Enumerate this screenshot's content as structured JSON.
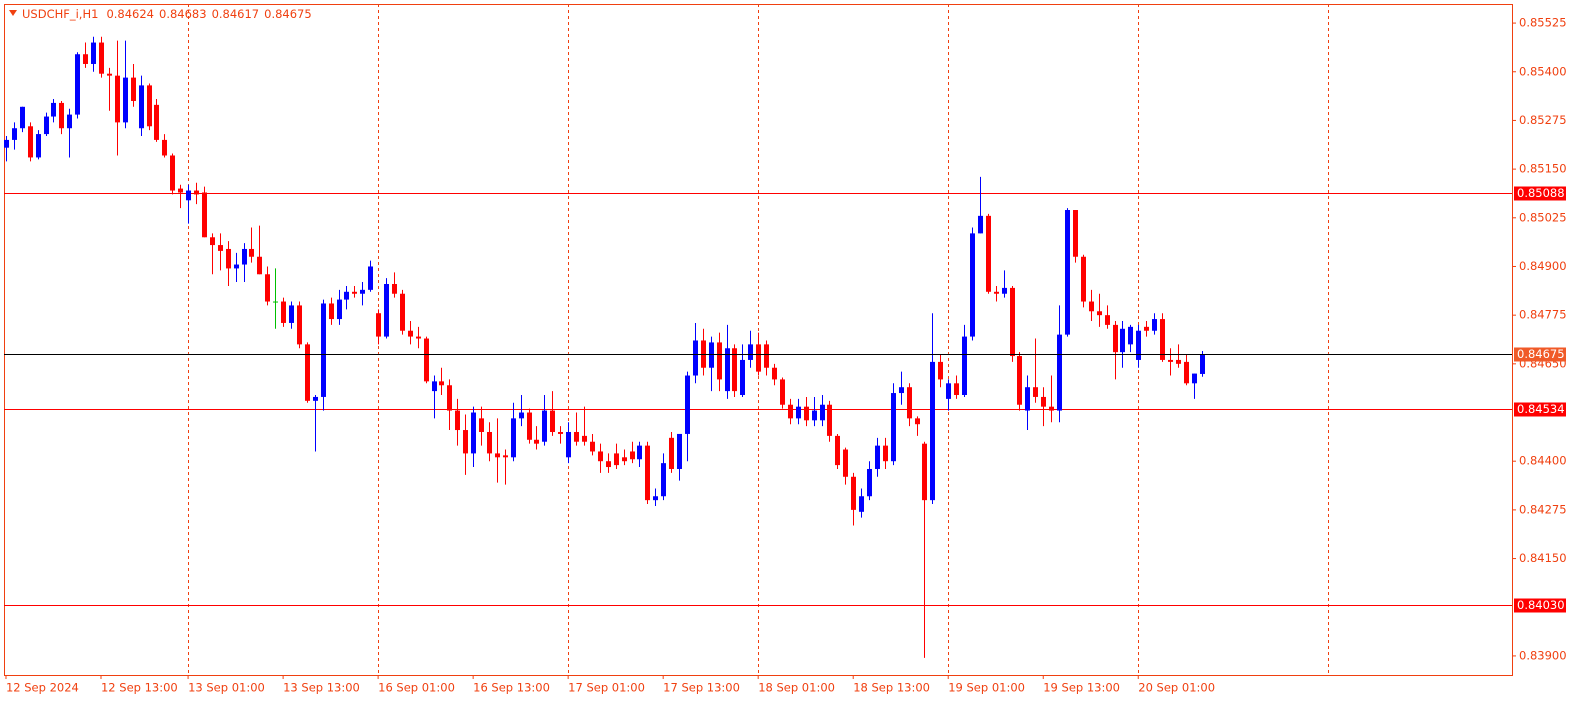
{
  "chart_data": {
    "type": "candlestick",
    "title": "USDCHF_i,H1",
    "bull_color": "#0000ff",
    "bear_color": "#ff0000",
    "doji_color": "#00c000",
    "axis_color": "#f04010",
    "ylim": [
      0.83851,
      0.85574
    ],
    "xlim": [
      -0.25,
      190.2
    ],
    "yticks": [
      0.85525,
      {
        "value": 0.854,
        "label": "0.85400"
      },
      0.85275,
      {
        "value": 0.8515,
        "label": "0.85150"
      },
      0.85025,
      {
        "value": 0.849,
        "label": "0.84900"
      },
      0.84775,
      {
        "value": 0.8465,
        "label": "0.84650"
      },
      {
        "value": 0.844,
        "label": "0.84400"
      },
      0.84275,
      {
        "value": 0.8415,
        "label": "0.84150"
      },
      {
        "value": 0.839,
        "label": "0.83900"
      }
    ],
    "xticks": [
      {
        "value": 0,
        "label": "12 Sep 2024"
      },
      {
        "value": 12,
        "label": "12 Sep 13:00"
      },
      {
        "value": 23,
        "label": "13 Sep 01:00"
      },
      {
        "value": 35,
        "label": "13 Sep 13:00"
      },
      {
        "value": 47,
        "label": "16 Sep 01:00"
      },
      {
        "value": 59,
        "label": "16 Sep 13:00"
      },
      {
        "value": 71,
        "label": "17 Sep 01:00"
      },
      {
        "value": 83,
        "label": "17 Sep 13:00"
      },
      {
        "value": 95,
        "label": "18 Sep 01:00"
      },
      {
        "value": 107,
        "label": "18 Sep 13:00"
      },
      {
        "value": 119,
        "label": "19 Sep 01:00"
      },
      {
        "value": 131,
        "label": "19 Sep 13:00"
      },
      {
        "value": 143,
        "label": "20 Sep 01:00"
      }
    ],
    "xgrid": [
      23,
      47,
      71,
      95,
      119,
      143,
      167
    ],
    "levels": [
      {
        "value": 0.85088
      },
      {
        "value": 0.84534
      },
      {
        "value": 0.8403,
        "label": "0.84030"
      }
    ],
    "candles": [
      [
        0.85205,
        0.85235,
        0.8517,
        0.85225
      ],
      [
        0.85225,
        0.8527,
        0.852,
        0.85255
      ],
      [
        0.85255,
        0.8531,
        0.85245,
        0.8531
      ],
      [
        0.8526,
        0.8527,
        0.8517,
        0.8518
      ],
      [
        0.8518,
        0.8525,
        0.85175,
        0.8524
      ],
      [
        0.8524,
        0.85295,
        0.85235,
        0.85285
      ],
      [
        0.85285,
        0.8533,
        0.8527,
        0.8532
      ],
      [
        0.8532,
        0.85325,
        0.8524,
        0.85255
      ],
      [
        0.85255,
        0.85305,
        0.8518,
        0.8529
      ],
      [
        0.8529,
        0.8545,
        0.8528,
        0.85445
      ],
      [
        0.85445,
        0.85475,
        0.8541,
        0.8542
      ],
      [
        0.8542,
        0.8549,
        0.854,
        0.85475
      ],
      [
        0.85475,
        0.8549,
        0.85385,
        0.85395
      ],
      [
        0.85395,
        0.8541,
        0.853,
        0.8539
      ],
      [
        0.8539,
        0.8548,
        0.85185,
        0.8527
      ],
      [
        0.8527,
        0.8548,
        0.85255,
        0.85385
      ],
      [
        0.85385,
        0.8542,
        0.8531,
        0.85325
      ],
      [
        0.85255,
        0.8539,
        0.85235,
        0.85365
      ],
      [
        0.85365,
        0.8537,
        0.8525,
        0.8526
      ],
      [
        0.85315,
        0.8533,
        0.8522,
        0.85225
      ],
      [
        0.85225,
        0.8524,
        0.8518,
        0.85185
      ],
      [
        0.85185,
        0.8519,
        0.85085,
        0.85095
      ],
      [
        0.851,
        0.8511,
        0.8505,
        0.8509
      ],
      [
        0.8507,
        0.8511,
        0.8501,
        0.85095
      ],
      [
        0.85095,
        0.85115,
        0.8506,
        0.85085
      ],
      [
        0.8509,
        0.85105,
        0.84975,
        0.84975
      ],
      [
        0.84975,
        0.84985,
        0.8488,
        0.84955
      ],
      [
        0.84955,
        0.84985,
        0.8489,
        0.8494
      ],
      [
        0.84945,
        0.84965,
        0.8485,
        0.84895
      ],
      [
        0.84895,
        0.84935,
        0.8486,
        0.84905
      ],
      [
        0.84905,
        0.8496,
        0.8486,
        0.84945
      ],
      [
        0.84945,
        0.85,
        0.8491,
        0.84925
      ],
      [
        0.84925,
        0.85005,
        0.8488,
        0.8488
      ],
      [
        0.8488,
        0.849,
        0.848,
        0.8481
      ],
      [
        0.8481,
        0.84895,
        0.8474,
        0.8481
      ],
      [
        0.8481,
        0.8482,
        0.84745,
        0.84755
      ],
      [
        0.84755,
        0.8481,
        0.8474,
        0.848
      ],
      [
        0.848,
        0.8481,
        0.8469,
        0.847
      ],
      [
        0.847,
        0.84705,
        0.8455,
        0.84555
      ],
      [
        0.84555,
        0.8457,
        0.84425,
        0.84565
      ],
      [
        0.84565,
        0.84815,
        0.8453,
        0.84805
      ],
      [
        0.84805,
        0.8482,
        0.8475,
        0.84765
      ],
      [
        0.84765,
        0.8484,
        0.8475,
        0.84815
      ],
      [
        0.84815,
        0.8485,
        0.8479,
        0.84835
      ],
      [
        0.84835,
        0.8485,
        0.8482,
        0.8483
      ],
      [
        0.8483,
        0.8486,
        0.848,
        0.8484
      ],
      [
        0.8484,
        0.84915,
        0.84835,
        0.849
      ],
      [
        0.8478,
        0.8479,
        0.847,
        0.8472
      ],
      [
        0.8472,
        0.8487,
        0.84715,
        0.84855
      ],
      [
        0.84855,
        0.84885,
        0.8482,
        0.8483
      ],
      [
        0.8483,
        0.8484,
        0.84725,
        0.84735
      ],
      [
        0.84735,
        0.8476,
        0.847,
        0.8472
      ],
      [
        0.8472,
        0.84745,
        0.8469,
        0.84715
      ],
      [
        0.84715,
        0.8472,
        0.846,
        0.84605
      ],
      [
        0.8458,
        0.8462,
        0.8451,
        0.84605
      ],
      [
        0.84605,
        0.8464,
        0.8457,
        0.84595
      ],
      [
        0.84595,
        0.8461,
        0.8448,
        0.8453
      ],
      [
        0.8453,
        0.8456,
        0.8444,
        0.8448
      ],
      [
        0.8448,
        0.8452,
        0.84365,
        0.8442
      ],
      [
        0.8442,
        0.8454,
        0.84385,
        0.84525
      ],
      [
        0.8451,
        0.8454,
        0.8444,
        0.84475
      ],
      [
        0.84475,
        0.845,
        0.844,
        0.8442
      ],
      [
        0.8442,
        0.8451,
        0.84345,
        0.8441
      ],
      [
        0.84415,
        0.8443,
        0.8434,
        0.8441
      ],
      [
        0.8441,
        0.8455,
        0.844,
        0.8451
      ],
      [
        0.8451,
        0.8457,
        0.8449,
        0.84525
      ],
      [
        0.84525,
        0.84535,
        0.84445,
        0.84455
      ],
      [
        0.84455,
        0.8449,
        0.8443,
        0.84445
      ],
      [
        0.8445,
        0.8457,
        0.8444,
        0.8453
      ],
      [
        0.8453,
        0.8458,
        0.84465,
        0.84475
      ],
      [
        0.84475,
        0.8449,
        0.84445,
        0.8447
      ],
      [
        0.8441,
        0.845,
        0.84395,
        0.84475
      ],
      [
        0.84475,
        0.84525,
        0.8444,
        0.8445
      ],
      [
        0.84465,
        0.8454,
        0.8444,
        0.8445
      ],
      [
        0.8445,
        0.8447,
        0.84415,
        0.84425
      ],
      [
        0.84425,
        0.84445,
        0.8437,
        0.844
      ],
      [
        0.844,
        0.8442,
        0.8437,
        0.84385
      ],
      [
        0.8442,
        0.84445,
        0.8438,
        0.8439
      ],
      [
        0.8441,
        0.8443,
        0.8439,
        0.844
      ],
      [
        0.84425,
        0.8445,
        0.84395,
        0.84405
      ],
      [
        0.84405,
        0.8445,
        0.84385,
        0.8444
      ],
      [
        0.8444,
        0.8445,
        0.8429,
        0.843
      ],
      [
        0.843,
        0.8433,
        0.84285,
        0.8431
      ],
      [
        0.8431,
        0.8442,
        0.843,
        0.84395
      ],
      [
        0.8446,
        0.84475,
        0.8437,
        0.8438
      ],
      [
        0.8438,
        0.8447,
        0.8435,
        0.8447
      ],
      [
        0.8447,
        0.8463,
        0.844,
        0.8462
      ],
      [
        0.8462,
        0.84755,
        0.846,
        0.8471
      ],
      [
        0.8471,
        0.8474,
        0.8462,
        0.8464
      ],
      [
        0.8464,
        0.8472,
        0.8458,
        0.84705
      ],
      [
        0.84705,
        0.8473,
        0.8458,
        0.8461
      ],
      [
        0.8458,
        0.8475,
        0.8456,
        0.8469
      ],
      [
        0.8469,
        0.847,
        0.84565,
        0.8458
      ],
      [
        0.8457,
        0.847,
        0.84565,
        0.8466
      ],
      [
        0.8466,
        0.84735,
        0.8464,
        0.847
      ],
      [
        0.847,
        0.8473,
        0.8462,
        0.8463
      ],
      [
        0.847,
        0.8471,
        0.8462,
        0.8464
      ],
      [
        0.8464,
        0.8465,
        0.84595,
        0.8461
      ],
      [
        0.8461,
        0.84615,
        0.84535,
        0.84545
      ],
      [
        0.84545,
        0.8456,
        0.84495,
        0.8451
      ],
      [
        0.8451,
        0.8456,
        0.84495,
        0.8454
      ],
      [
        0.8454,
        0.84565,
        0.8449,
        0.84505
      ],
      [
        0.84505,
        0.84565,
        0.8449,
        0.8453
      ],
      [
        0.84505,
        0.8457,
        0.8449,
        0.84545
      ],
      [
        0.84545,
        0.84555,
        0.8445,
        0.84465
      ],
      [
        0.84465,
        0.8447,
        0.8438,
        0.8439
      ],
      [
        0.8443,
        0.84435,
        0.8434,
        0.8436
      ],
      [
        0.8436,
        0.8437,
        0.84235,
        0.84275
      ],
      [
        0.8427,
        0.8433,
        0.84255,
        0.8431
      ],
      [
        0.8431,
        0.844,
        0.843,
        0.8438
      ],
      [
        0.8438,
        0.8446,
        0.8436,
        0.8444
      ],
      [
        0.8444,
        0.8446,
        0.8438,
        0.844
      ],
      [
        0.844,
        0.846,
        0.8439,
        0.84575
      ],
      [
        0.84575,
        0.8463,
        0.84545,
        0.8459
      ],
      [
        0.8459,
        0.846,
        0.8449,
        0.8451
      ],
      [
        0.8451,
        0.84515,
        0.84465,
        0.84495
      ],
      [
        0.84445,
        0.8445,
        0.83895,
        0.843
      ],
      [
        0.843,
        0.8478,
        0.8429,
        0.84655
      ],
      [
        0.84655,
        0.84675,
        0.8459,
        0.8461
      ],
      [
        0.8456,
        0.8461,
        0.8453,
        0.846
      ],
      [
        0.846,
        0.8462,
        0.8456,
        0.8457
      ],
      [
        0.8457,
        0.8475,
        0.84565,
        0.8472
      ],
      [
        0.8472,
        0.85,
        0.8471,
        0.84985
      ],
      [
        0.84985,
        0.8513,
        0.84985,
        0.8503
      ],
      [
        0.8503,
        0.85035,
        0.8483,
        0.84835
      ],
      [
        0.84835,
        0.8485,
        0.8481,
        0.8483
      ],
      [
        0.8483,
        0.8489,
        0.8482,
        0.84845
      ],
      [
        0.84845,
        0.8485,
        0.84655,
        0.8467
      ],
      [
        0.8467,
        0.8468,
        0.8453,
        0.84545
      ],
      [
        0.8453,
        0.8462,
        0.8448,
        0.8459
      ],
      [
        0.8459,
        0.84715,
        0.8455,
        0.84565
      ],
      [
        0.84565,
        0.8459,
        0.8449,
        0.8454
      ],
      [
        0.8454,
        0.8462,
        0.845,
        0.8453
      ],
      [
        0.8453,
        0.848,
        0.845,
        0.84725
      ],
      [
        0.84725,
        0.8505,
        0.8472,
        0.85045
      ],
      [
        0.85045,
        0.85045,
        0.8491,
        0.84925
      ],
      [
        0.84925,
        0.8493,
        0.84795,
        0.8481
      ],
      [
        0.8481,
        0.8484,
        0.8476,
        0.84785
      ],
      [
        0.84785,
        0.8483,
        0.84745,
        0.84775
      ],
      [
        0.84775,
        0.848,
        0.8474,
        0.8475
      ],
      [
        0.8475,
        0.8476,
        0.8461,
        0.8468
      ],
      [
        0.8468,
        0.8476,
        0.8464,
        0.8474
      ],
      [
        0.847,
        0.8475,
        0.8468,
        0.84745
      ],
      [
        0.8466,
        0.8475,
        0.8464,
        0.84735
      ],
      [
        0.84745,
        0.8476,
        0.8472,
        0.84735
      ],
      [
        0.84735,
        0.8478,
        0.84725,
        0.84765
      ],
      [
        0.84765,
        0.8478,
        0.84655,
        0.8466
      ],
      [
        0.8466,
        0.8469,
        0.8462,
        0.84655
      ],
      [
        0.8466,
        0.847,
        0.8464,
        0.8465
      ],
      [
        0.84655,
        0.84675,
        0.84595,
        0.846
      ],
      [
        0.846,
        0.84625,
        0.8456,
        0.84625
      ],
      [
        0.84624,
        0.84683,
        0.84617,
        0.84675
      ]
    ]
  }
}
